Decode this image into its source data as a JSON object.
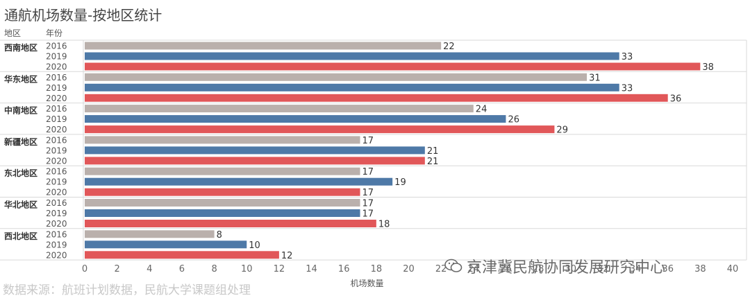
{
  "title": "通航机场数量-按地区统计",
  "header": {
    "region_label": "地区",
    "year_label": "年份"
  },
  "source_note": "数据来源：航班计划数据，民航大学课题组处理",
  "watermark": "京津冀民航协同发展研究中心",
  "colors": {
    "2016": "#bab0ac",
    "2019": "#4e79a7",
    "2020": "#e15759"
  },
  "chart_data": {
    "type": "bar",
    "orientation": "horizontal",
    "xlabel": "机场数量",
    "xlim": [
      0,
      40
    ],
    "xticks": [
      0,
      2,
      4,
      6,
      8,
      10,
      12,
      14,
      16,
      18,
      20,
      22,
      24,
      26,
      28,
      30,
      32,
      34,
      36,
      38,
      40
    ],
    "years": [
      "2016",
      "2019",
      "2020"
    ],
    "groups": [
      {
        "region": "西南地区",
        "values": [
          22,
          33,
          38
        ]
      },
      {
        "region": "华东地区",
        "values": [
          31,
          33,
          36
        ]
      },
      {
        "region": "中南地区",
        "values": [
          24,
          26,
          29
        ]
      },
      {
        "region": "新疆地区",
        "values": [
          17,
          21,
          21
        ]
      },
      {
        "region": "东北地区",
        "values": [
          17,
          19,
          17
        ]
      },
      {
        "region": "华北地区",
        "values": [
          17,
          17,
          18
        ]
      },
      {
        "region": "西北地区",
        "values": [
          8,
          10,
          12
        ]
      }
    ]
  }
}
